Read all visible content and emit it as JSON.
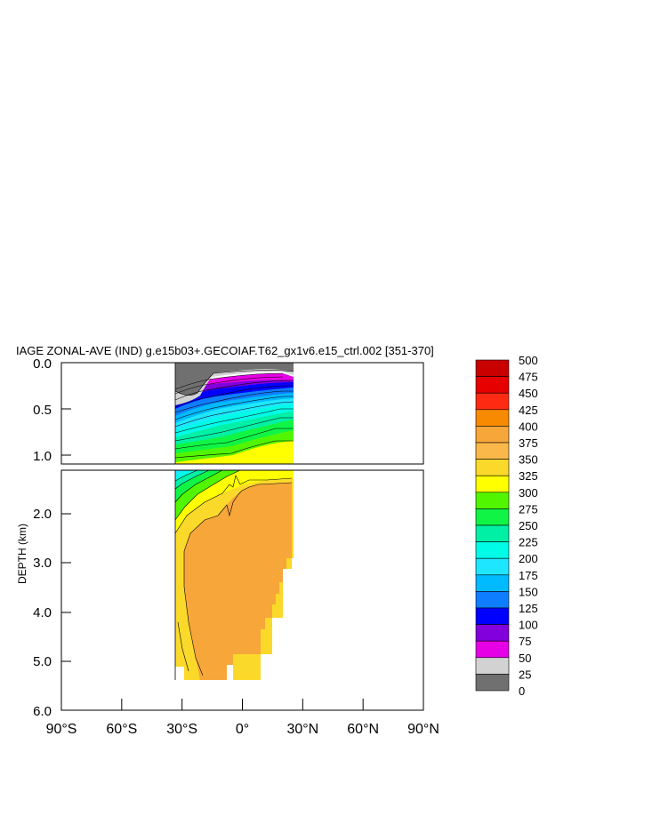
{
  "chart_data": {
    "type": "heatmap",
    "title": "IAGE ZONAL-AVE (IND) g.e15b03+.GECOIAF.T62_gx1v6.e15_ctrl.002 [351-370]",
    "xlabel": "",
    "ylabel": "DEPTH (km)",
    "xlim": [
      -90,
      90
    ],
    "ylim": [
      6.0,
      0.0
    ],
    "x_ticks": [
      {
        "value": -90,
        "label": "90°S"
      },
      {
        "value": -60,
        "label": "60°S"
      },
      {
        "value": -30,
        "label": "30°S"
      },
      {
        "value": 0,
        "label": "0°"
      },
      {
        "value": 30,
        "label": "30°N"
      },
      {
        "value": 60,
        "label": "60°N"
      },
      {
        "value": 90,
        "label": "90°N"
      }
    ],
    "y_ticks_upper": [
      "0.0",
      "0.5",
      "1.0"
    ],
    "y_ticks_lower": [
      "2.0",
      "3.0",
      "4.0",
      "5.0",
      "6.0"
    ],
    "colorbar": {
      "labels": [
        "500",
        "475",
        "450",
        "425",
        "400",
        "375",
        "350",
        "325",
        "300",
        "275",
        "250",
        "225",
        "200",
        "175",
        "150",
        "125",
        "100",
        "75",
        "50",
        "25",
        "0"
      ],
      "colors": [
        "#c80000",
        "#e60000",
        "#ff2a12",
        "#f78a00",
        "#f7a63a",
        "#fbb84a",
        "#fbd92a",
        "#ffff00",
        "#52f500",
        "#10f545",
        "#00f0a6",
        "#00fbe7",
        "#1fe6ff",
        "#00baff",
        "#0f7dff",
        "#0000ff",
        "#8200dc",
        "#e600e6",
        "#d2d2d2",
        "#707070"
      ]
    },
    "field_extent": {
      "lat_min": -33,
      "lat_max": 27,
      "max_depth_km": 5.4
    },
    "series": [
      {
        "level": 350,
        "lat": [
          -30,
          -25,
          -20,
          -10,
          0,
          10,
          20,
          26
        ],
        "depth_km": [
          1.15,
          1.3,
          1.4,
          1.55,
          1.6,
          1.55,
          1.5,
          1.5
        ]
      },
      {
        "level": 375,
        "lat": [
          -28,
          -25,
          -20,
          -10,
          0,
          10,
          20,
          26
        ],
        "depth_km": [
          5.0,
          3.0,
          2.3,
          2.2,
          1.8,
          1.6,
          1.5,
          1.5
        ]
      }
    ]
  }
}
